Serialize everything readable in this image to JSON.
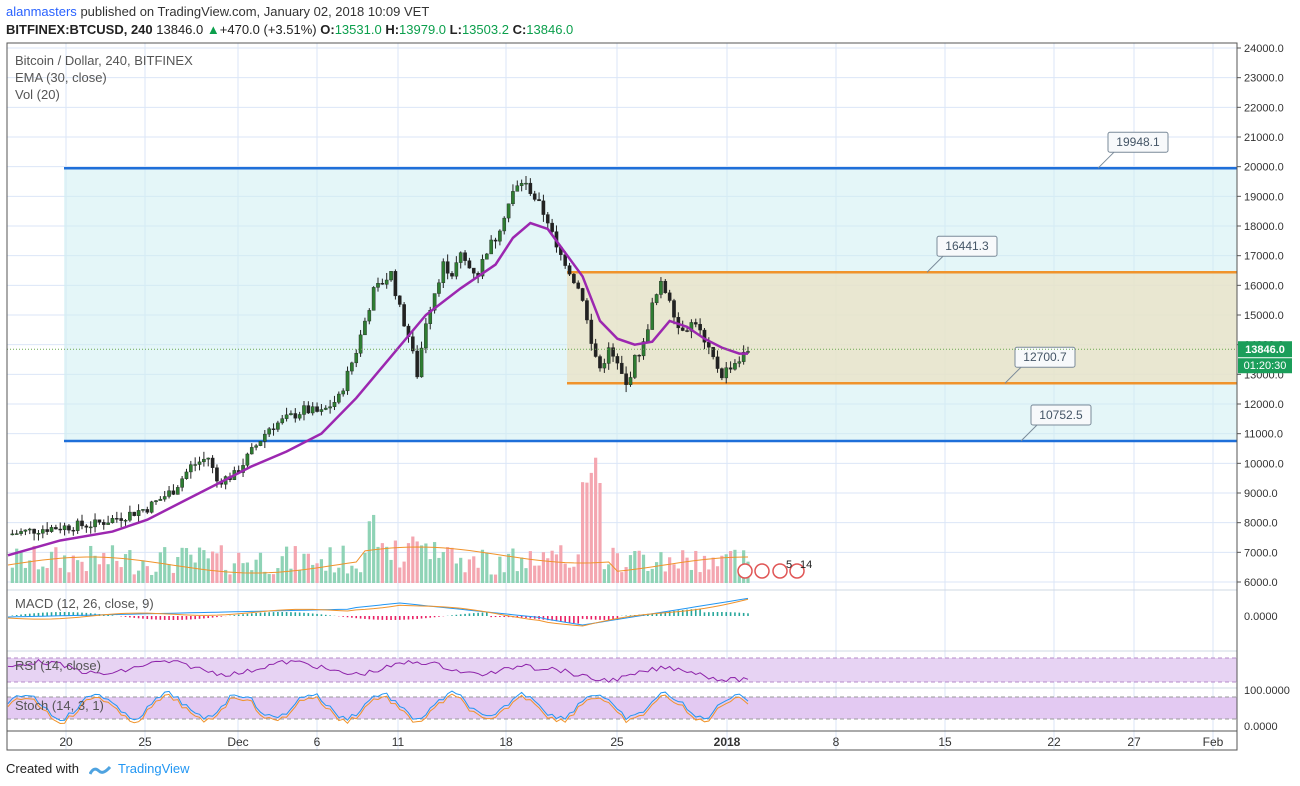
{
  "header": {
    "user": "alanmasters",
    "published": "published on TradingView.com, January 02, 2018 10:09 VET",
    "symbol": "BITFINEX:BTCUSD, 240",
    "last": "13846.0",
    "change": "+470.0 (+3.51%)",
    "o_label": "O:",
    "o": "13531.0",
    "h_label": "H:",
    "h": "13979.0",
    "l_label": "L:",
    "l": "13503.2",
    "c_label": "C:",
    "c": "13846.0"
  },
  "legend": {
    "title": "Bitcoin / Dollar, 240, BITFINEX",
    "ema": "EMA (30, close)",
    "vol": "Vol (20)",
    "macd": "MACD (12, 26, close, 9)",
    "rsi": "RSI (14, close)",
    "stoch": "Stoch (14, 3, 1)"
  },
  "price_badge": "13846.0",
  "countdown": "01:20:30",
  "event_count_a": "5",
  "event_count_b": "14",
  "footer": {
    "created": "Created with",
    "brand": "TradingView"
  },
  "colors": {
    "up": "#2e7d32",
    "down": "#222222",
    "ema": "#9c27b0",
    "blue_zone": "#1e6fd9",
    "orange_zone": "#f0932b",
    "vol_up": "#8fd3b6",
    "vol_down": "#f4a6b0"
  },
  "chart_data": {
    "type": "candlestick",
    "title": "Bitcoin / Dollar, 240, BITFINEX",
    "ylim": [
      6000,
      24000
    ],
    "y_ticks": [
      "24000.0",
      "23000.0",
      "22000.0",
      "21000.0",
      "20000.0",
      "19000.0",
      "18000.0",
      "17000.0",
      "16000.0",
      "15000.0",
      "14000.0",
      "13000.0",
      "12000.0",
      "11000.0",
      "10000.0",
      "9000.0",
      "8000.0",
      "7000.0",
      "6000.0"
    ],
    "x_ticks": [
      "20",
      "25",
      "Dec",
      "6",
      "11",
      "18",
      "25",
      "2018",
      "8",
      "15",
      "22",
      "27",
      "Feb"
    ],
    "close_path": [
      [
        0,
        7600
      ],
      [
        4,
        7800
      ],
      [
        8,
        7900
      ],
      [
        10,
        7950
      ],
      [
        13,
        8200
      ],
      [
        16,
        8500
      ],
      [
        19,
        9100
      ],
      [
        21,
        9900
      ],
      [
        23,
        10200
      ],
      [
        24,
        9400
      ],
      [
        26,
        9600
      ],
      [
        28,
        10400
      ],
      [
        30,
        11200
      ],
      [
        32,
        11500
      ],
      [
        34,
        11800
      ],
      [
        36,
        11700
      ],
      [
        38,
        12200
      ],
      [
        40,
        13800
      ],
      [
        42,
        15800
      ],
      [
        44,
        16400
      ],
      [
        45,
        15200
      ],
      [
        46,
        14300
      ],
      [
        47,
        13000
      ],
      [
        48,
        14800
      ],
      [
        49,
        15800
      ],
      [
        50,
        16700
      ],
      [
        51,
        16400
      ],
      [
        52,
        17000
      ],
      [
        53,
        16600
      ],
      [
        54,
        16400
      ],
      [
        55,
        17200
      ],
      [
        56,
        17600
      ],
      [
        57,
        18400
      ],
      [
        58,
        19100
      ],
      [
        59,
        19500
      ],
      [
        60,
        19200
      ],
      [
        61,
        18700
      ],
      [
        62,
        18200
      ],
      [
        63,
        17200
      ],
      [
        64,
        16800
      ],
      [
        65,
        16200
      ],
      [
        66,
        15600
      ],
      [
        67,
        14000
      ],
      [
        68,
        13200
      ],
      [
        69,
        13800
      ],
      [
        70,
        13300
      ],
      [
        71,
        12600
      ],
      [
        72,
        13500
      ],
      [
        73,
        14000
      ],
      [
        74,
        15300
      ],
      [
        75,
        16000
      ],
      [
        76,
        15600
      ],
      [
        77,
        14600
      ],
      [
        78,
        14600
      ],
      [
        79,
        14800
      ],
      [
        80,
        14000
      ],
      [
        81,
        13500
      ],
      [
        82,
        13000
      ],
      [
        83,
        13300
      ],
      [
        84,
        13500
      ],
      [
        85,
        13800
      ]
    ],
    "ema_path": [
      [
        0,
        6900
      ],
      [
        6,
        7400
      ],
      [
        12,
        7700
      ],
      [
        16,
        8100
      ],
      [
        20,
        8700
      ],
      [
        24,
        9300
      ],
      [
        28,
        9900
      ],
      [
        32,
        10400
      ],
      [
        36,
        11000
      ],
      [
        40,
        12200
      ],
      [
        44,
        13600
      ],
      [
        48,
        15000
      ],
      [
        52,
        15900
      ],
      [
        56,
        16700
      ],
      [
        58,
        17600
      ],
      [
        60,
        18100
      ],
      [
        62,
        17900
      ],
      [
        64,
        17100
      ],
      [
        66,
        16300
      ],
      [
        68,
        14800
      ],
      [
        70,
        14200
      ],
      [
        72,
        14000
      ],
      [
        74,
        14100
      ],
      [
        76,
        14800
      ],
      [
        78,
        14600
      ],
      [
        80,
        14200
      ],
      [
        82,
        13900
      ],
      [
        84,
        13700
      ],
      [
        85,
        13700
      ]
    ],
    "zones": [
      {
        "label": "19948.1",
        "top": 19948.1,
        "bottom": 10752.5,
        "kind": "blue"
      },
      {
        "label": "10752.5",
        "top": 10752.5,
        "bottom": 10752.5,
        "kind": "blue-line"
      },
      {
        "label": "16441.3",
        "top": 16441.3,
        "bottom": 12700.7,
        "kind": "orange"
      },
      {
        "label": "12700.7",
        "top": 12700.7,
        "bottom": 12700.7,
        "kind": "orange-line"
      }
    ],
    "macd": {
      "zero_label": "0.0000"
    },
    "rsi": {
      "levels": [
        70,
        30
      ]
    },
    "stoch": {
      "top_label": "100.0000",
      "bottom_label": "0.0000",
      "levels": [
        80,
        20
      ]
    }
  }
}
